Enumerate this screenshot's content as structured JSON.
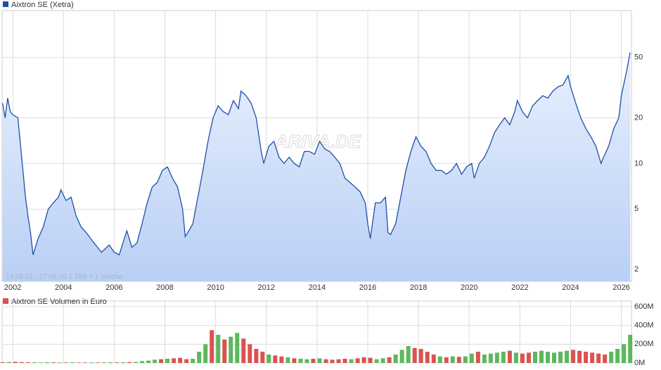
{
  "chart_data": [
    {
      "type": "line",
      "title": "Aixtron SE (Xetra)",
      "color": "#1f4fa8",
      "log_scale": true,
      "grid": true,
      "annotation": "14.08.01 - 27.05.26   1 Tick = 1 Woche",
      "watermark": "ARIVA.DE",
      "xlim": [
        2001.58,
        2026.4
      ],
      "xticks": [
        2002,
        2004,
        2006,
        2008,
        2010,
        2012,
        2014,
        2016,
        2018,
        2020,
        2022,
        2024,
        2026
      ],
      "ylim": [
        1.67,
        102
      ],
      "yticks": [
        2,
        5,
        10,
        20,
        50
      ],
      "x": [
        2001.6,
        2001.7,
        2001.8,
        2001.9,
        2002.0,
        2002.2,
        2002.4,
        2002.5,
        2002.6,
        2002.7,
        2002.8,
        2003.0,
        2003.2,
        2003.4,
        2003.6,
        2003.8,
        2003.9,
        2004.1,
        2004.3,
        2004.5,
        2004.7,
        2004.9,
        2005.2,
        2005.5,
        2005.8,
        2006.0,
        2006.2,
        2006.4,
        2006.5,
        2006.7,
        2006.9,
        2007.1,
        2007.3,
        2007.5,
        2007.7,
        2007.9,
        2008.1,
        2008.3,
        2008.5,
        2008.7,
        2008.8,
        2008.9,
        2009.1,
        2009.3,
        2009.5,
        2009.7,
        2009.9,
        2010.1,
        2010.3,
        2010.5,
        2010.7,
        2010.9,
        2011.0,
        2011.2,
        2011.4,
        2011.6,
        2011.8,
        2011.9,
        2012.1,
        2012.3,
        2012.5,
        2012.7,
        2012.9,
        2013.1,
        2013.3,
        2013.5,
        2013.7,
        2013.9,
        2014.1,
        2014.3,
        2014.5,
        2014.7,
        2014.9,
        2015.1,
        2015.3,
        2015.5,
        2015.7,
        2015.9,
        2016.0,
        2016.1,
        2016.3,
        2016.5,
        2016.7,
        2016.8,
        2016.9,
        2017.1,
        2017.3,
        2017.5,
        2017.7,
        2017.9,
        2018.1,
        2018.3,
        2018.5,
        2018.7,
        2018.9,
        2019.1,
        2019.3,
        2019.5,
        2019.7,
        2019.9,
        2020.1,
        2020.2,
        2020.4,
        2020.6,
        2020.8,
        2021.0,
        2021.2,
        2021.4,
        2021.6,
        2021.8,
        2021.9,
        2022.1,
        2022.3,
        2022.5,
        2022.7,
        2022.9,
        2023.1,
        2023.3,
        2023.5,
        2023.7,
        2023.9,
        2024.0,
        2024.2,
        2024.4,
        2024.6,
        2024.8,
        2025.0,
        2025.2,
        2025.3,
        2025.5,
        2025.7,
        2025.9,
        2026.0,
        2026.2,
        2026.35
      ],
      "values": [
        25,
        20,
        27,
        22,
        21,
        20,
        9,
        6,
        4.5,
        3.5,
        2.5,
        3.2,
        3.8,
        5,
        5.5,
        6,
        6.7,
        5.7,
        6,
        4.5,
        3.8,
        3.5,
        3,
        2.6,
        2.9,
        2.6,
        2.5,
        3.2,
        3.6,
        2.8,
        3,
        4,
        5.5,
        7,
        7.5,
        9,
        9.5,
        8,
        7,
        5,
        3.3,
        3.5,
        4,
        6,
        9,
        14,
        20,
        24,
        22,
        21,
        26,
        23,
        30,
        28,
        25,
        20,
        12,
        10,
        13,
        14,
        11,
        10,
        11,
        10,
        9.5,
        12,
        12,
        11.5,
        14,
        12.5,
        12,
        11,
        10,
        8,
        7.5,
        7,
        6.5,
        5.5,
        4,
        3.2,
        5.5,
        5.5,
        6,
        3.5,
        3.4,
        4,
        6,
        9,
        12,
        15,
        13,
        12,
        10,
        9,
        9,
        8.5,
        9,
        10,
        8.5,
        9.5,
        10,
        8,
        10,
        11,
        13,
        16,
        18,
        20,
        18,
        22,
        26,
        22,
        20,
        24,
        26,
        28,
        27,
        30,
        32,
        33,
        38,
        32,
        25,
        20,
        17,
        15,
        13,
        10,
        11,
        13,
        17,
        20,
        28,
        40,
        54
      ]
    },
    {
      "type": "bar",
      "title": "Aixtron SE Volumen in Euro",
      "grid": true,
      "xlim": [
        2001.58,
        2026.4
      ],
      "ylim": [
        0,
        660000000
      ],
      "yticks": [
        {
          "value": 0,
          "label": "0M"
        },
        {
          "value": 200000000,
          "label": "200M"
        },
        {
          "value": 400000000,
          "label": "400M"
        },
        {
          "value": 600000000,
          "label": "600M"
        }
      ],
      "x": [
        2001.6,
        2001.85,
        2002.1,
        2002.35,
        2002.6,
        2002.85,
        2003.1,
        2003.35,
        2003.6,
        2003.85,
        2004.1,
        2004.35,
        2004.6,
        2004.85,
        2005.1,
        2005.35,
        2005.6,
        2005.85,
        2006.1,
        2006.35,
        2006.6,
        2006.85,
        2007.1,
        2007.35,
        2007.6,
        2007.85,
        2008.1,
        2008.35,
        2008.6,
        2008.85,
        2009.1,
        2009.35,
        2009.6,
        2009.85,
        2010.1,
        2010.35,
        2010.6,
        2010.85,
        2011.1,
        2011.35,
        2011.6,
        2011.85,
        2012.1,
        2012.35,
        2012.6,
        2012.85,
        2013.1,
        2013.35,
        2013.6,
        2013.85,
        2014.1,
        2014.35,
        2014.6,
        2014.85,
        2015.1,
        2015.35,
        2015.6,
        2015.85,
        2016.1,
        2016.35,
        2016.6,
        2016.85,
        2017.1,
        2017.35,
        2017.6,
        2017.85,
        2018.1,
        2018.35,
        2018.6,
        2018.85,
        2019.1,
        2019.35,
        2019.6,
        2019.85,
        2020.1,
        2020.35,
        2020.6,
        2020.85,
        2021.1,
        2021.35,
        2021.6,
        2021.85,
        2022.1,
        2022.35,
        2022.6,
        2022.85,
        2023.1,
        2023.35,
        2023.6,
        2023.85,
        2024.1,
        2024.35,
        2024.6,
        2024.85,
        2025.1,
        2025.35,
        2025.6,
        2025.85,
        2026.1,
        2026.35
      ],
      "values": [
        8000000.0,
        10000000.0,
        12000000.0,
        9000000.0,
        8000000.0,
        7000000.0,
        6000000.0,
        8000000.0,
        7000000.0,
        6000000.0,
        5000000.0,
        6000000.0,
        5000000.0,
        5000000.0,
        6000000.0,
        5000000.0,
        6000000.0,
        7000000.0,
        6000000.0,
        8000000.0,
        9000000.0,
        10000000.0,
        20000000.0,
        25000000.0,
        35000000.0,
        40000000.0,
        45000000.0,
        50000000.0,
        55000000.0,
        40000000.0,
        45000000.0,
        120000000.0,
        200000000.0,
        350000000.0,
        300000000.0,
        250000000.0,
        280000000.0,
        320000000.0,
        260000000.0,
        200000000.0,
        150000000.0,
        120000000.0,
        90000000.0,
        80000000.0,
        70000000.0,
        60000000.0,
        50000000.0,
        45000000.0,
        40000000.0,
        45000000.0,
        50000000.0,
        40000000.0,
        35000000.0,
        40000000.0,
        45000000.0,
        40000000.0,
        50000000.0,
        60000000.0,
        55000000.0,
        40000000.0,
        50000000.0,
        60000000.0,
        90000000.0,
        140000000.0,
        180000000.0,
        160000000.0,
        150000000.0,
        120000000.0,
        90000000.0,
        70000000.0,
        60000000.0,
        70000000.0,
        65000000.0,
        70000000.0,
        100000000.0,
        120000000.0,
        90000000.0,
        100000000.0,
        110000000.0,
        120000000.0,
        130000000.0,
        110000000.0,
        100000000.0,
        110000000.0,
        120000000.0,
        130000000.0,
        120000000.0,
        110000000.0,
        120000000.0,
        130000000.0,
        140000000.0,
        130000000.0,
        120000000.0,
        110000000.0,
        100000000.0,
        90000000.0,
        120000000.0,
        150000000.0,
        200000000.0,
        300000000.0
      ],
      "colors": [
        "#d9534f",
        "#5cb85c",
        "#d9534f",
        "#d9534f",
        "#d9534f",
        "#5cb85c",
        "#5cb85c",
        "#5cb85c",
        "#d9534f",
        "#5cb85c",
        "#d9534f",
        "#5cb85c",
        "#d9534f",
        "#d9534f",
        "#5cb85c",
        "#d9534f",
        "#5cb85c",
        "#5cb85c",
        "#d9534f",
        "#5cb85c",
        "#d9534f",
        "#5cb85c",
        "#5cb85c",
        "#5cb85c",
        "#5cb85c",
        "#d9534f",
        "#5cb85c",
        "#d9534f",
        "#d9534f",
        "#d9534f",
        "#5cb85c",
        "#5cb85c",
        "#5cb85c",
        "#d9534f",
        "#5cb85c",
        "#d9534f",
        "#5cb85c",
        "#5cb85c",
        "#d9534f",
        "#d9534f",
        "#d9534f",
        "#d9534f",
        "#5cb85c",
        "#d9534f",
        "#d9534f",
        "#5cb85c",
        "#d9534f",
        "#5cb85c",
        "#5cb85c",
        "#d9534f",
        "#5cb85c",
        "#d9534f",
        "#d9534f",
        "#d9534f",
        "#d9534f",
        "#5cb85c",
        "#d9534f",
        "#d9534f",
        "#d9534f",
        "#5cb85c",
        "#5cb85c",
        "#d9534f",
        "#5cb85c",
        "#5cb85c",
        "#5cb85c",
        "#d9534f",
        "#d9534f",
        "#d9534f",
        "#d9534f",
        "#5cb85c",
        "#d9534f",
        "#5cb85c",
        "#d9534f",
        "#5cb85c",
        "#5cb85c",
        "#d9534f",
        "#5cb85c",
        "#5cb85c",
        "#5cb85c",
        "#5cb85c",
        "#d9534f",
        "#5cb85c",
        "#d9534f",
        "#d9534f",
        "#5cb85c",
        "#5cb85c",
        "#5cb85c",
        "#5cb85c",
        "#5cb85c",
        "#5cb85c",
        "#d9534f",
        "#d9534f",
        "#d9534f",
        "#d9534f",
        "#d9534f",
        "#d9534f",
        "#5cb85c",
        "#5cb85c",
        "#5cb85c",
        "#5cb85c"
      ]
    }
  ]
}
